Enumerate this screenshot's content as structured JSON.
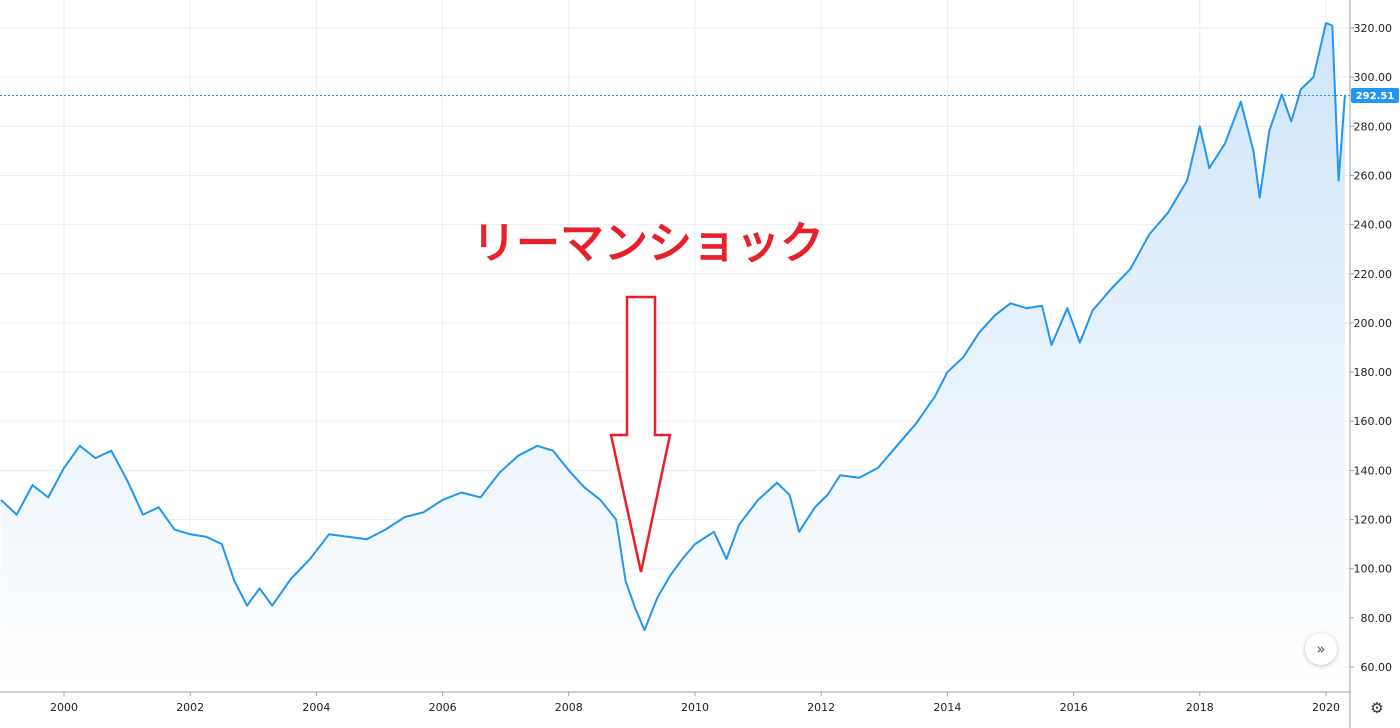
{
  "chart_data": {
    "type": "area",
    "title": "",
    "xlabel": "",
    "ylabel": "",
    "ylim": [
      50,
      330
    ],
    "xlim": [
      1999.0,
      2020.35
    ],
    "grid": true,
    "x_tick_labels": [
      "2000",
      "2002",
      "2004",
      "2006",
      "2008",
      "2010",
      "2012",
      "2014",
      "2016",
      "2018",
      "2020"
    ],
    "y_tick_labels": [
      "60.00",
      "80.00",
      "100.00",
      "120.00",
      "140.00",
      "160.00",
      "180.00",
      "200.00",
      "220.00",
      "240.00",
      "260.00",
      "280.00",
      "300.00",
      "320.00"
    ],
    "last_price": 292.51,
    "last_price_label": "292.51",
    "annotation_text": "リーマンショック",
    "colors": {
      "line": "#2196f3",
      "fill_top": "#cfe5fa",
      "fill_bottom": "#ffffff",
      "grid": "#e6eef6",
      "annotation": "#e8202a",
      "price_tag": "#2196f3"
    },
    "series": [
      {
        "x": [
          1999.0,
          1999.25,
          1999.5,
          1999.75,
          2000.0,
          2000.25,
          2000.5,
          2000.75,
          2001.0,
          2001.25,
          2001.5,
          2001.75,
          2002.0,
          2002.25,
          2002.5,
          2002.7,
          2002.9,
          2003.1,
          2003.3,
          2003.6,
          2003.9,
          2004.2,
          2004.5,
          2004.8,
          2005.1,
          2005.4,
          2005.7,
          2006.0,
          2006.3,
          2006.6,
          2006.9,
          2007.2,
          2007.5,
          2007.75,
          2008.0,
          2008.25,
          2008.5,
          2008.75,
          2008.9,
          2009.05,
          2009.2,
          2009.4,
          2009.6,
          2009.8,
          2010.0,
          2010.3,
          2010.5,
          2010.7,
          2011.0,
          2011.3,
          2011.5,
          2011.65,
          2011.9,
          2012.1,
          2012.3,
          2012.6,
          2012.9,
          2013.2,
          2013.5,
          2013.8,
          2014.0,
          2014.25,
          2014.5,
          2014.75,
          2015.0,
          2015.25,
          2015.5,
          2015.65,
          2015.9,
          2016.1,
          2016.3,
          2016.6,
          2016.9,
          2017.2,
          2017.5,
          2017.8,
          2018.0,
          2018.15,
          2018.4,
          2018.65,
          2018.85,
          2018.95,
          2019.1,
          2019.3,
          2019.45,
          2019.6,
          2019.8,
          2020.0,
          2020.1,
          2020.2,
          2020.3
        ],
        "y": [
          128,
          122,
          134,
          129,
          141,
          150,
          145,
          148,
          136,
          122,
          125,
          116,
          114,
          113,
          110,
          95,
          85,
          92,
          85,
          96,
          104,
          114,
          113,
          112,
          116,
          121,
          123,
          128,
          131,
          129,
          139,
          146,
          150,
          148,
          140,
          133,
          128,
          120,
          95,
          84,
          75,
          88,
          97,
          104,
          110,
          115,
          104,
          118,
          128,
          135,
          130,
          115,
          125,
          130,
          138,
          137,
          141,
          150,
          159,
          170,
          180,
          186,
          196,
          203,
          208,
          206,
          207,
          191,
          206,
          192,
          205,
          214,
          222,
          236,
          245,
          258,
          280,
          263,
          273,
          290,
          270,
          251,
          278,
          293,
          282,
          295,
          300,
          322,
          321,
          258,
          292.51
        ]
      }
    ]
  }
}
